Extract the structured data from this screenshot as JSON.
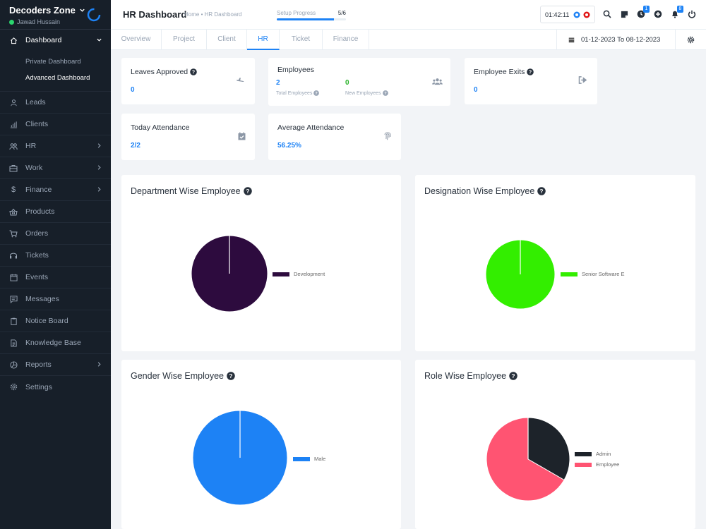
{
  "brand": {
    "name": "Decoders Zone",
    "user": "Jawad Hussain",
    "status_color": "#2bd66f"
  },
  "sidebar": {
    "dashboard": {
      "label": "Dashboard",
      "sub": [
        {
          "label": "Private Dashboard"
        },
        {
          "label": "Advanced Dashboard"
        }
      ]
    },
    "items": [
      {
        "label": "Leads",
        "icon": "user-icon"
      },
      {
        "label": "Clients",
        "icon": "chart-bars-icon"
      },
      {
        "label": "HR",
        "icon": "people-icon"
      },
      {
        "label": "Work",
        "icon": "briefcase-icon"
      },
      {
        "label": "Finance",
        "icon": "dollar-icon"
      },
      {
        "label": "Products",
        "icon": "basket-icon"
      },
      {
        "label": "Orders",
        "icon": "cart-icon"
      },
      {
        "label": "Tickets",
        "icon": "headset-icon"
      },
      {
        "label": "Events",
        "icon": "calendar-icon"
      },
      {
        "label": "Messages",
        "icon": "chat-icon"
      },
      {
        "label": "Notice Board",
        "icon": "clipboard-icon"
      },
      {
        "label": "Knowledge Base",
        "icon": "document-icon"
      },
      {
        "label": "Reports",
        "icon": "pie-chart-icon"
      },
      {
        "label": "Settings",
        "icon": "gear-icon"
      }
    ]
  },
  "header": {
    "title": "HR Dashboard",
    "breadcrumb": "Home • HR Dashboard",
    "setup": {
      "label": "Setup Progress",
      "count": "5/6",
      "progress": 0.83
    },
    "timer": "01:42:11",
    "notifications": {
      "tasks_badge": "1",
      "bell_badge": "8"
    }
  },
  "tabs": [
    {
      "label": "Overview"
    },
    {
      "label": "Project"
    },
    {
      "label": "Client"
    },
    {
      "label": "HR"
    },
    {
      "label": "Ticket"
    },
    {
      "label": "Finance"
    }
  ],
  "date_range": "01-12-2023 To 08-12-2023",
  "stats": {
    "leaves": {
      "title": "Leaves Approved",
      "value": "0"
    },
    "employees": {
      "title": "Employees",
      "total": "2",
      "total_label": "Total Employees",
      "new": "0",
      "new_label": "New Employees"
    },
    "exits": {
      "title": "Employee Exits",
      "value": "0"
    },
    "today": {
      "title": "Today Attendance",
      "value": "2/2"
    },
    "average": {
      "title": "Average Attendance",
      "value": "56.25%"
    }
  },
  "panels": {
    "department": {
      "title": "Department Wise Employee"
    },
    "designation": {
      "title": "Designation Wise Employee"
    },
    "gender": {
      "title": "Gender Wise Employee"
    },
    "role": {
      "title": "Role Wise Employee"
    }
  },
  "chart_data": [
    {
      "type": "pie",
      "categories": [
        "Development"
      ],
      "values": [
        2
      ],
      "colors": [
        "#2d0b3e"
      ]
    },
    {
      "type": "pie",
      "categories": [
        "Senior Software E"
      ],
      "values": [
        2
      ],
      "colors": [
        "#33ee00"
      ]
    },
    {
      "type": "pie",
      "categories": [
        "Male"
      ],
      "values": [
        2
      ],
      "colors": [
        "#1d82f5"
      ]
    },
    {
      "type": "pie",
      "categories": [
        "Admin",
        "Employee"
      ],
      "values": [
        1,
        2
      ],
      "colors": [
        "#1d232a",
        "#ff5472"
      ]
    }
  ]
}
